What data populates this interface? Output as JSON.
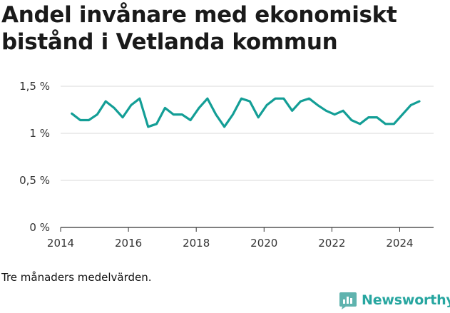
{
  "chart_data": {
    "type": "line",
    "title": "Andel invånare med ekonomiskt bistånd i Vetlanda kommun",
    "xlabel": "",
    "ylabel": "",
    "ylim": [
      0,
      1.5
    ],
    "xlim": [
      2014,
      2025
    ],
    "y_ticks": [
      0,
      0.5,
      1,
      1.5
    ],
    "y_tick_labels": [
      "0 %",
      "0,5 %",
      "1 %",
      "1,5 %"
    ],
    "x_ticks": [
      2014,
      2016,
      2018,
      2020,
      2022,
      2024
    ],
    "x_tick_labels": [
      "2014",
      "2016",
      "2018",
      "2020",
      "2022",
      "2024"
    ],
    "grid": "horizontal",
    "line_color": "#139e96",
    "series": [
      {
        "x": [
          2014.33,
          2014.58,
          2014.83,
          2015.08,
          2015.33,
          2015.58,
          2015.83,
          2016.08,
          2016.33,
          2016.58,
          2016.83,
          2017.08,
          2017.33,
          2017.58,
          2017.83,
          2018.08,
          2018.33,
          2018.58,
          2018.83,
          2019.08,
          2019.33,
          2019.58,
          2019.83,
          2020.08,
          2020.33,
          2020.58,
          2020.83,
          2021.08,
          2021.33,
          2021.58,
          2021.83,
          2022.08,
          2022.33,
          2022.58,
          2022.83,
          2023.08,
          2023.33,
          2023.58,
          2023.83,
          2024.08,
          2024.33,
          2024.58
        ],
        "y": [
          1.21,
          1.14,
          1.14,
          1.2,
          1.34,
          1.27,
          1.17,
          1.3,
          1.37,
          1.07,
          1.1,
          1.27,
          1.2,
          1.2,
          1.14,
          1.27,
          1.37,
          1.2,
          1.07,
          1.2,
          1.37,
          1.34,
          1.17,
          1.3,
          1.37,
          1.37,
          1.24,
          1.34,
          1.37,
          1.3,
          1.24,
          1.2,
          1.24,
          1.14,
          1.1,
          1.17,
          1.17,
          1.1,
          1.1,
          1.2,
          1.3,
          1.34
        ]
      }
    ]
  },
  "note": "Tre månaders medelvärden.",
  "brand": {
    "name": "Newsworthy",
    "icon": "bar-chart-logo-icon",
    "color": "#2aa8a2"
  }
}
